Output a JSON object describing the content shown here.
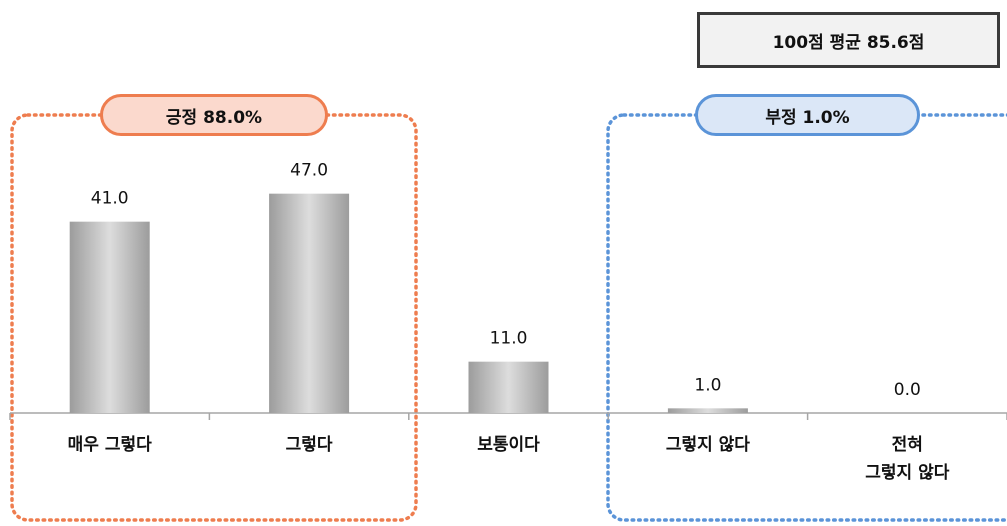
{
  "average": {
    "text": "100점 평균 85.6점"
  },
  "groups": {
    "positive": {
      "label": "긍정 88.0%",
      "color": "#ee7d4f"
    },
    "negative": {
      "label": "부정 1.0%",
      "color": "#5b94d8"
    }
  },
  "chart_data": {
    "type": "bar",
    "categories": [
      [
        "매우 그렇다"
      ],
      [
        "그렇다"
      ],
      [
        "보통이다"
      ],
      [
        "그렇지 않다"
      ],
      [
        "전혀",
        "그렇지 않다"
      ]
    ],
    "values": [
      41.0,
      47.0,
      11.0,
      1.0,
      0.0
    ],
    "value_labels": [
      "41.0",
      "47.0",
      "11.0",
      "1.0",
      "0.0"
    ],
    "ylim": [
      0,
      60
    ],
    "grid": false,
    "legend": "none",
    "bar_color": "#bdbdbd"
  }
}
